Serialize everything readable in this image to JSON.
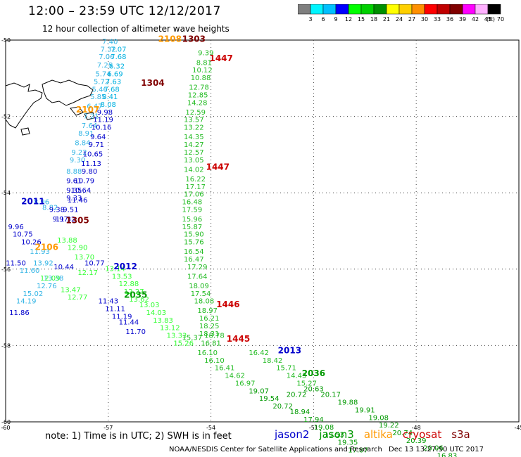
{
  "header": {
    "title": "12:00 – 23:59 UTC 12/12/2017",
    "subtitle": "12 hour collection of altimeter wave heights"
  },
  "colorbar": {
    "unit_label": "(ft)",
    "ticks": [
      "3",
      "6",
      "9",
      "12",
      "15",
      "18",
      "21",
      "24",
      "27",
      "30",
      "33",
      "36",
      "39",
      "42",
      "45",
      "70"
    ],
    "colors": [
      "#7f7f7f",
      "#00f5ff",
      "#00c0ff",
      "#0000ff",
      "#00ff00",
      "#00d000",
      "#009000",
      "#ffff00",
      "#ffd000",
      "#ff9000",
      "#ff0000",
      "#c00000",
      "#800000",
      "#ff00ff",
      "#ffb0ff",
      "#000000"
    ]
  },
  "footer": {
    "note": "note:  1) Time is in UTC;  2) SWH is in feet",
    "credit": "NOAA/NESDIS Center for Satellite Applications and Research",
    "timestamp": "Dec 13 13:27:50 UTC 2017"
  },
  "legend": [
    {
      "name": "jason2",
      "color": "#0000cc"
    },
    {
      "name": "jason3",
      "color": "#009900"
    },
    {
      "name": "altika",
      "color": "#ff9900"
    },
    {
      "name": "cryosat",
      "color": "#cc0000"
    },
    {
      "name": "s3a",
      "color": "#800000"
    }
  ],
  "chart_data": {
    "type": "scatter",
    "title": "12 hour collection of altimeter wave heights",
    "xlabel": "",
    "ylabel": "",
    "xlim": [
      -60,
      -45
    ],
    "ylim": [
      -60,
      -50
    ],
    "x_ticks": [
      "-60",
      "-57",
      "-54",
      "-51",
      "-48",
      "-45"
    ],
    "y_ticks": [
      "-50",
      "-52",
      "-54",
      "-56",
      "-58",
      "-60"
    ],
    "grid": true,
    "units": "ft",
    "pass_labels": [
      {
        "sat": "altika",
        "text": "2108",
        "x": -55.2,
        "y": -50.05
      },
      {
        "sat": "s3a",
        "text": "1303",
        "x": -54.5,
        "y": -50.05
      },
      {
        "sat": "cryosat",
        "text": "1447",
        "x": -53.7,
        "y": -50.55
      },
      {
        "sat": "s3a",
        "text": "1304",
        "x": -55.7,
        "y": -51.2
      },
      {
        "sat": "altika",
        "text": "2107",
        "x": -57.6,
        "y": -51.9
      },
      {
        "sat": "cryosat",
        "text": "1447",
        "x": -53.8,
        "y": -53.4
      },
      {
        "sat": "jason2",
        "text": "2011",
        "x": -59.2,
        "y": -54.3
      },
      {
        "sat": "s3a",
        "text": "1305",
        "x": -57.9,
        "y": -54.8
      },
      {
        "sat": "altika",
        "text": "2106",
        "x": -58.8,
        "y": -55.5
      },
      {
        "sat": "jason2",
        "text": "2012",
        "x": -56.5,
        "y": -56.0
      },
      {
        "sat": "jason3",
        "text": "2035",
        "x": -56.2,
        "y": -56.75
      },
      {
        "sat": "cryosat",
        "text": "1446",
        "x": -53.5,
        "y": -57.0
      },
      {
        "sat": "cryosat",
        "text": "1445",
        "x": -53.2,
        "y": -57.9
      },
      {
        "sat": "jason2",
        "text": "2013",
        "x": -51.7,
        "y": -58.2
      },
      {
        "sat": "jason3",
        "text": "2036",
        "x": -51.0,
        "y": -58.8
      }
    ],
    "series": [
      {
        "name": "altika",
        "color": "#33b5e5",
        "points": [
          {
            "x": -56.95,
            "y": -50.1,
            "v": "7.40"
          },
          {
            "x": -57.0,
            "y": -50.3,
            "v": "7.32"
          },
          {
            "x": -57.05,
            "y": -50.5,
            "v": "7.06"
          },
          {
            "x": -57.1,
            "y": -50.72,
            "v": "7.25"
          },
          {
            "x": -57.15,
            "y": -50.95,
            "v": "5.74"
          },
          {
            "x": -57.2,
            "y": -51.15,
            "v": "5.72"
          },
          {
            "x": -57.25,
            "y": -51.35,
            "v": "5.46"
          },
          {
            "x": -57.3,
            "y": -51.55,
            "v": "5.85"
          },
          {
            "x": -57.4,
            "y": -51.8,
            "v": "6.47"
          },
          {
            "x": -57.5,
            "y": -52.05,
            "v": "7.21"
          },
          {
            "x": -57.55,
            "y": -52.3,
            "v": "7.64"
          },
          {
            "x": -57.65,
            "y": -52.5,
            "v": "8.91"
          },
          {
            "x": -57.75,
            "y": -52.75,
            "v": "8.84"
          },
          {
            "x": -57.85,
            "y": -53.0,
            "v": "9.22"
          },
          {
            "x": -57.9,
            "y": -53.2,
            "v": "9.30"
          },
          {
            "x": -58.0,
            "y": -53.5,
            "v": "8.88"
          },
          {
            "x": -58.95,
            "y": -54.3,
            "v": "8.96"
          },
          {
            "x": -58.7,
            "y": -54.45,
            "v": "8.82"
          },
          {
            "x": -59.0,
            "y": -55.6,
            "v": "11.93"
          },
          {
            "x": -58.9,
            "y": -55.9,
            "v": "13.92"
          },
          {
            "x": -59.3,
            "y": -56.1,
            "v": "11.60"
          },
          {
            "x": -58.6,
            "y": -56.3,
            "v": "13.38"
          },
          {
            "x": -58.8,
            "y": -56.5,
            "v": "12.76"
          },
          {
            "x": -59.2,
            "y": -56.7,
            "v": "15.02"
          },
          {
            "x": -59.4,
            "y": -56.9,
            "v": "14.19"
          }
        ]
      },
      {
        "name": "s3a-north",
        "color": "#00b0e0",
        "points": [
          {
            "x": -56.7,
            "y": -50.3,
            "v": "7.07"
          },
          {
            "x": -56.7,
            "y": -50.5,
            "v": "7.68"
          },
          {
            "x": -56.75,
            "y": -50.75,
            "v": "6.32"
          },
          {
            "x": -56.8,
            "y": -50.95,
            "v": "6.69"
          },
          {
            "x": -56.85,
            "y": -51.15,
            "v": "7.63"
          },
          {
            "x": -56.9,
            "y": -51.35,
            "v": "7.68"
          },
          {
            "x": -56.95,
            "y": -51.55,
            "v": "8.41"
          },
          {
            "x": -57.0,
            "y": -51.75,
            "v": "8.08"
          }
        ]
      },
      {
        "name": "s3a",
        "color": "#0000cc",
        "points": [
          {
            "x": -57.1,
            "y": -51.95,
            "v": "9.98"
          },
          {
            "x": -57.15,
            "y": -52.15,
            "v": "11.19"
          },
          {
            "x": -57.2,
            "y": -52.35,
            "v": "10.16"
          },
          {
            "x": -57.3,
            "y": -52.6,
            "v": "9.64"
          },
          {
            "x": -57.35,
            "y": -52.8,
            "v": "9.71"
          },
          {
            "x": -57.45,
            "y": -53.05,
            "v": "10.65"
          },
          {
            "x": -57.5,
            "y": -53.3,
            "v": "11.13"
          },
          {
            "x": -57.55,
            "y": -53.5,
            "v": "9.80"
          },
          {
            "x": -58.0,
            "y": -53.75,
            "v": "9.61"
          },
          {
            "x": -57.7,
            "y": -53.75,
            "v": "10.79"
          },
          {
            "x": -58.0,
            "y": -54.0,
            "v": "9.35"
          },
          {
            "x": -57.8,
            "y": -54.0,
            "v": "10.64"
          },
          {
            "x": -58.0,
            "y": -54.2,
            "v": "9.33"
          },
          {
            "x": -57.9,
            "y": -54.25,
            "v": "11.46"
          },
          {
            "x": -58.5,
            "y": -54.5,
            "v": "9.38"
          },
          {
            "x": -58.1,
            "y": -54.5,
            "v": "9.51"
          },
          {
            "x": -58.4,
            "y": -54.75,
            "v": "9.97"
          },
          {
            "x": -58.25,
            "y": -54.75,
            "v": "11.32"
          },
          {
            "x": -59.7,
            "y": -54.95,
            "v": "9.96"
          },
          {
            "x": -59.5,
            "y": -55.15,
            "v": "10.75"
          },
          {
            "x": -59.25,
            "y": -55.35,
            "v": "10.26"
          },
          {
            "x": -59.7,
            "y": -55.9,
            "v": "11.50"
          },
          {
            "x": -59.6,
            "y": -57.2,
            "v": "11.86"
          }
        ]
      },
      {
        "name": "jason2",
        "color": "#0000cc",
        "points": [
          {
            "x": -58.3,
            "y": -56.0,
            "v": "10.44"
          },
          {
            "x": -57.4,
            "y": -55.9,
            "v": "10.77"
          },
          {
            "x": -57.0,
            "y": -56.9,
            "v": "11.43"
          },
          {
            "x": -56.8,
            "y": -57.1,
            "v": "11.11"
          },
          {
            "x": -56.6,
            "y": -57.3,
            "v": "11.19"
          },
          {
            "x": -56.4,
            "y": -57.45,
            "v": "11.44"
          },
          {
            "x": -56.2,
            "y": -57.7,
            "v": "11.70"
          }
        ]
      },
      {
        "name": "jason3",
        "color": "#33ff33",
        "points": [
          {
            "x": -58.2,
            "y": -55.3,
            "v": "13.88"
          },
          {
            "x": -57.9,
            "y": -55.5,
            "v": "12.90"
          },
          {
            "x": -57.7,
            "y": -55.75,
            "v": "13.70"
          },
          {
            "x": -56.8,
            "y": -56.05,
            "v": "13.14"
          },
          {
            "x": -56.6,
            "y": -56.25,
            "v": "13.53"
          },
          {
            "x": -56.4,
            "y": -56.45,
            "v": "12.88"
          },
          {
            "x": -56.25,
            "y": -56.65,
            "v": "12.27"
          },
          {
            "x": -56.1,
            "y": -56.85,
            "v": "13.62"
          },
          {
            "x": -55.8,
            "y": -57.0,
            "v": "13.03"
          },
          {
            "x": -55.6,
            "y": -57.2,
            "v": "14.03"
          },
          {
            "x": -55.4,
            "y": -57.4,
            "v": "13.83"
          },
          {
            "x": -55.2,
            "y": -57.6,
            "v": "13.12"
          },
          {
            "x": -55.0,
            "y": -57.8,
            "v": "13.33"
          },
          {
            "x": -54.8,
            "y": -58.0,
            "v": "15.26"
          },
          {
            "x": -58.7,
            "y": -56.3,
            "v": "12.09"
          },
          {
            "x": -58.1,
            "y": -56.6,
            "v": "13.47"
          },
          {
            "x": -57.9,
            "y": -56.8,
            "v": "12.77"
          },
          {
            "x": -57.6,
            "y": -56.15,
            "v": "12.17"
          }
        ]
      },
      {
        "name": "cryosat",
        "color": "#22bb22",
        "points": [
          {
            "x": -54.15,
            "y": -50.4,
            "v": "9.39"
          },
          {
            "x": -54.2,
            "y": -50.65,
            "v": "8.81"
          },
          {
            "x": -54.25,
            "y": -50.85,
            "v": "10.12"
          },
          {
            "x": -54.3,
            "y": -51.05,
            "v": "10.88"
          },
          {
            "x": -54.35,
            "y": -51.3,
            "v": "12.78"
          },
          {
            "x": -54.38,
            "y": -51.5,
            "v": "12.85"
          },
          {
            "x": -54.4,
            "y": -51.7,
            "v": "14.28"
          },
          {
            "x": -54.45,
            "y": -51.95,
            "v": "12.59"
          },
          {
            "x": -54.5,
            "y": -52.15,
            "v": "13.57"
          },
          {
            "x": -54.5,
            "y": -52.35,
            "v": "13.22"
          },
          {
            "x": -54.5,
            "y": -52.6,
            "v": "14.35"
          },
          {
            "x": -54.5,
            "y": -52.8,
            "v": "14.27"
          },
          {
            "x": -54.5,
            "y": -53.0,
            "v": "12.57"
          },
          {
            "x": -54.5,
            "y": -53.2,
            "v": "13.05"
          },
          {
            "x": -54.5,
            "y": -53.45,
            "v": "14.02"
          },
          {
            "x": -54.45,
            "y": -53.7,
            "v": "16.22"
          },
          {
            "x": -54.45,
            "y": -53.9,
            "v": "17.17"
          },
          {
            "x": -54.5,
            "y": -54.1,
            "v": "17.06"
          },
          {
            "x": -54.55,
            "y": -54.3,
            "v": "16.48"
          },
          {
            "x": -54.55,
            "y": -54.5,
            "v": "17.59"
          },
          {
            "x": -54.55,
            "y": -54.75,
            "v": "15.96"
          },
          {
            "x": -54.55,
            "y": -54.95,
            "v": "15.87"
          },
          {
            "x": -54.5,
            "y": -55.15,
            "v": "15.90"
          },
          {
            "x": -54.5,
            "y": -55.35,
            "v": "15.76"
          },
          {
            "x": -54.5,
            "y": -55.6,
            "v": "16.54"
          },
          {
            "x": -54.5,
            "y": -55.8,
            "v": "16.47"
          },
          {
            "x": -54.4,
            "y": -56.0,
            "v": "17.29"
          },
          {
            "x": -54.4,
            "y": -56.25,
            "v": "17.64"
          },
          {
            "x": -54.35,
            "y": -56.5,
            "v": "18.09"
          },
          {
            "x": -54.3,
            "y": -56.7,
            "v": "17.54"
          },
          {
            "x": -54.2,
            "y": -56.9,
            "v": "18.08"
          },
          {
            "x": -54.1,
            "y": -57.15,
            "v": "18.97"
          },
          {
            "x": -54.05,
            "y": -57.35,
            "v": "16.21"
          },
          {
            "x": -54.05,
            "y": -57.55,
            "v": "18.25"
          },
          {
            "x": -54.05,
            "y": -57.75,
            "v": "18.31"
          },
          {
            "x": -53.9,
            "y": -57.8,
            "v": "18.78"
          },
          {
            "x": -54.55,
            "y": -57.85,
            "v": "15.37"
          },
          {
            "x": -54.0,
            "y": -58.0,
            "v": "16.81"
          },
          {
            "x": -54.1,
            "y": -58.25,
            "v": "16.10"
          },
          {
            "x": -53.9,
            "y": -58.45,
            "v": "16.10"
          },
          {
            "x": -53.6,
            "y": -58.65,
            "v": "16.41"
          },
          {
            "x": -53.3,
            "y": -58.85,
            "v": "14.62"
          },
          {
            "x": -53.0,
            "y": -59.05,
            "v": "16.97"
          },
          {
            "x": -52.6,
            "y": -58.25,
            "v": "16.42"
          },
          {
            "x": -52.2,
            "y": -58.45,
            "v": "18.42"
          },
          {
            "x": -51.8,
            "y": -58.65,
            "v": "15.71"
          },
          {
            "x": -51.5,
            "y": -58.85,
            "v": "14.43"
          },
          {
            "x": -51.2,
            "y": -59.05,
            "v": "15.27"
          }
        ]
      },
      {
        "name": "jason3-south",
        "color": "#009900",
        "points": [
          {
            "x": -52.6,
            "y": -59.25,
            "v": "19.07"
          },
          {
            "x": -52.3,
            "y": -59.45,
            "v": "19.54"
          },
          {
            "x": -51.9,
            "y": -59.65,
            "v": "20.72"
          },
          {
            "x": -51.4,
            "y": -59.8,
            "v": "18.94"
          },
          {
            "x": -51.0,
            "y": -60.0,
            "v": "17.94"
          },
          {
            "x": -50.7,
            "y": -60.2,
            "v": "19.08"
          },
          {
            "x": -50.4,
            "y": -60.4,
            "v": "19.53"
          },
          {
            "x": -50.0,
            "y": -60.6,
            "v": "19.35"
          },
          {
            "x": -49.7,
            "y": -60.8,
            "v": "17.07"
          },
          {
            "x": -51.5,
            "y": -59.35,
            "v": "20.72"
          },
          {
            "x": -51.0,
            "y": -59.2,
            "v": "20.63"
          },
          {
            "x": -50.5,
            "y": -59.35,
            "v": "20.17"
          },
          {
            "x": -50.0,
            "y": -59.55,
            "v": "19.88"
          },
          {
            "x": -49.5,
            "y": -59.75,
            "v": "19.91"
          },
          {
            "x": -49.1,
            "y": -59.95,
            "v": "19.08"
          },
          {
            "x": -48.8,
            "y": -60.15,
            "v": "19.22"
          },
          {
            "x": -48.4,
            "y": -60.35,
            "v": "20.74"
          },
          {
            "x": -48.0,
            "y": -60.55,
            "v": "20.39"
          },
          {
            "x": -47.5,
            "y": -60.75,
            "v": "20.06"
          },
          {
            "x": -47.1,
            "y": -60.95,
            "v": "16.83"
          }
        ]
      }
    ]
  }
}
